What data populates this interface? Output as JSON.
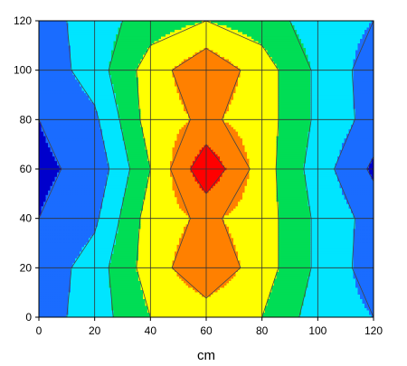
{
  "chart_data": {
    "type": "heatmap",
    "subtype": "filled-contour",
    "title": "",
    "xlabel": "cm",
    "ylabel": "",
    "xlim": [
      0,
      120
    ],
    "ylim": [
      0,
      120
    ],
    "grid": true,
    "legend": "none",
    "x": [
      0,
      20,
      40,
      60,
      80,
      100,
      120
    ],
    "y": [
      0,
      20,
      40,
      60,
      80,
      100,
      120
    ],
    "x_tick_labels": [
      "0",
      "20",
      "40",
      "60",
      "80",
      "100",
      "120"
    ],
    "y_tick_labels": [
      "0",
      "20",
      "40",
      "60",
      "80",
      "100",
      "120"
    ],
    "z": [
      [
        0.5,
        1.5,
        3.0,
        3.5,
        3.0,
        1.5,
        1.0
      ],
      [
        0.3,
        1.5,
        3.5,
        4.8,
        3.5,
        1.8,
        0.5
      ],
      [
        0.0,
        0.8,
        3.5,
        4.2,
        3.5,
        1.8,
        0.6
      ],
      [
        -0.2,
        0.3,
        3.0,
        5.8,
        3.5,
        1.5,
        -0.2
      ],
      [
        0.0,
        0.8,
        3.5,
        4.2,
        3.5,
        1.8,
        0.6
      ],
      [
        0.3,
        1.5,
        3.5,
        4.8,
        3.5,
        1.8,
        0.5
      ],
      [
        0.5,
        1.5,
        2.5,
        3.0,
        2.5,
        1.5,
        1.0
      ]
    ],
    "levels": [
      0,
      1,
      2,
      3,
      4,
      5
    ],
    "level_colors": [
      "#0000cc",
      "#1a6cff",
      "#00e5ff",
      "#00dd55",
      "#ffff00",
      "#ff8000",
      "#ff0000"
    ],
    "contour_line_color": "#444444",
    "grid_color": "#333333"
  }
}
